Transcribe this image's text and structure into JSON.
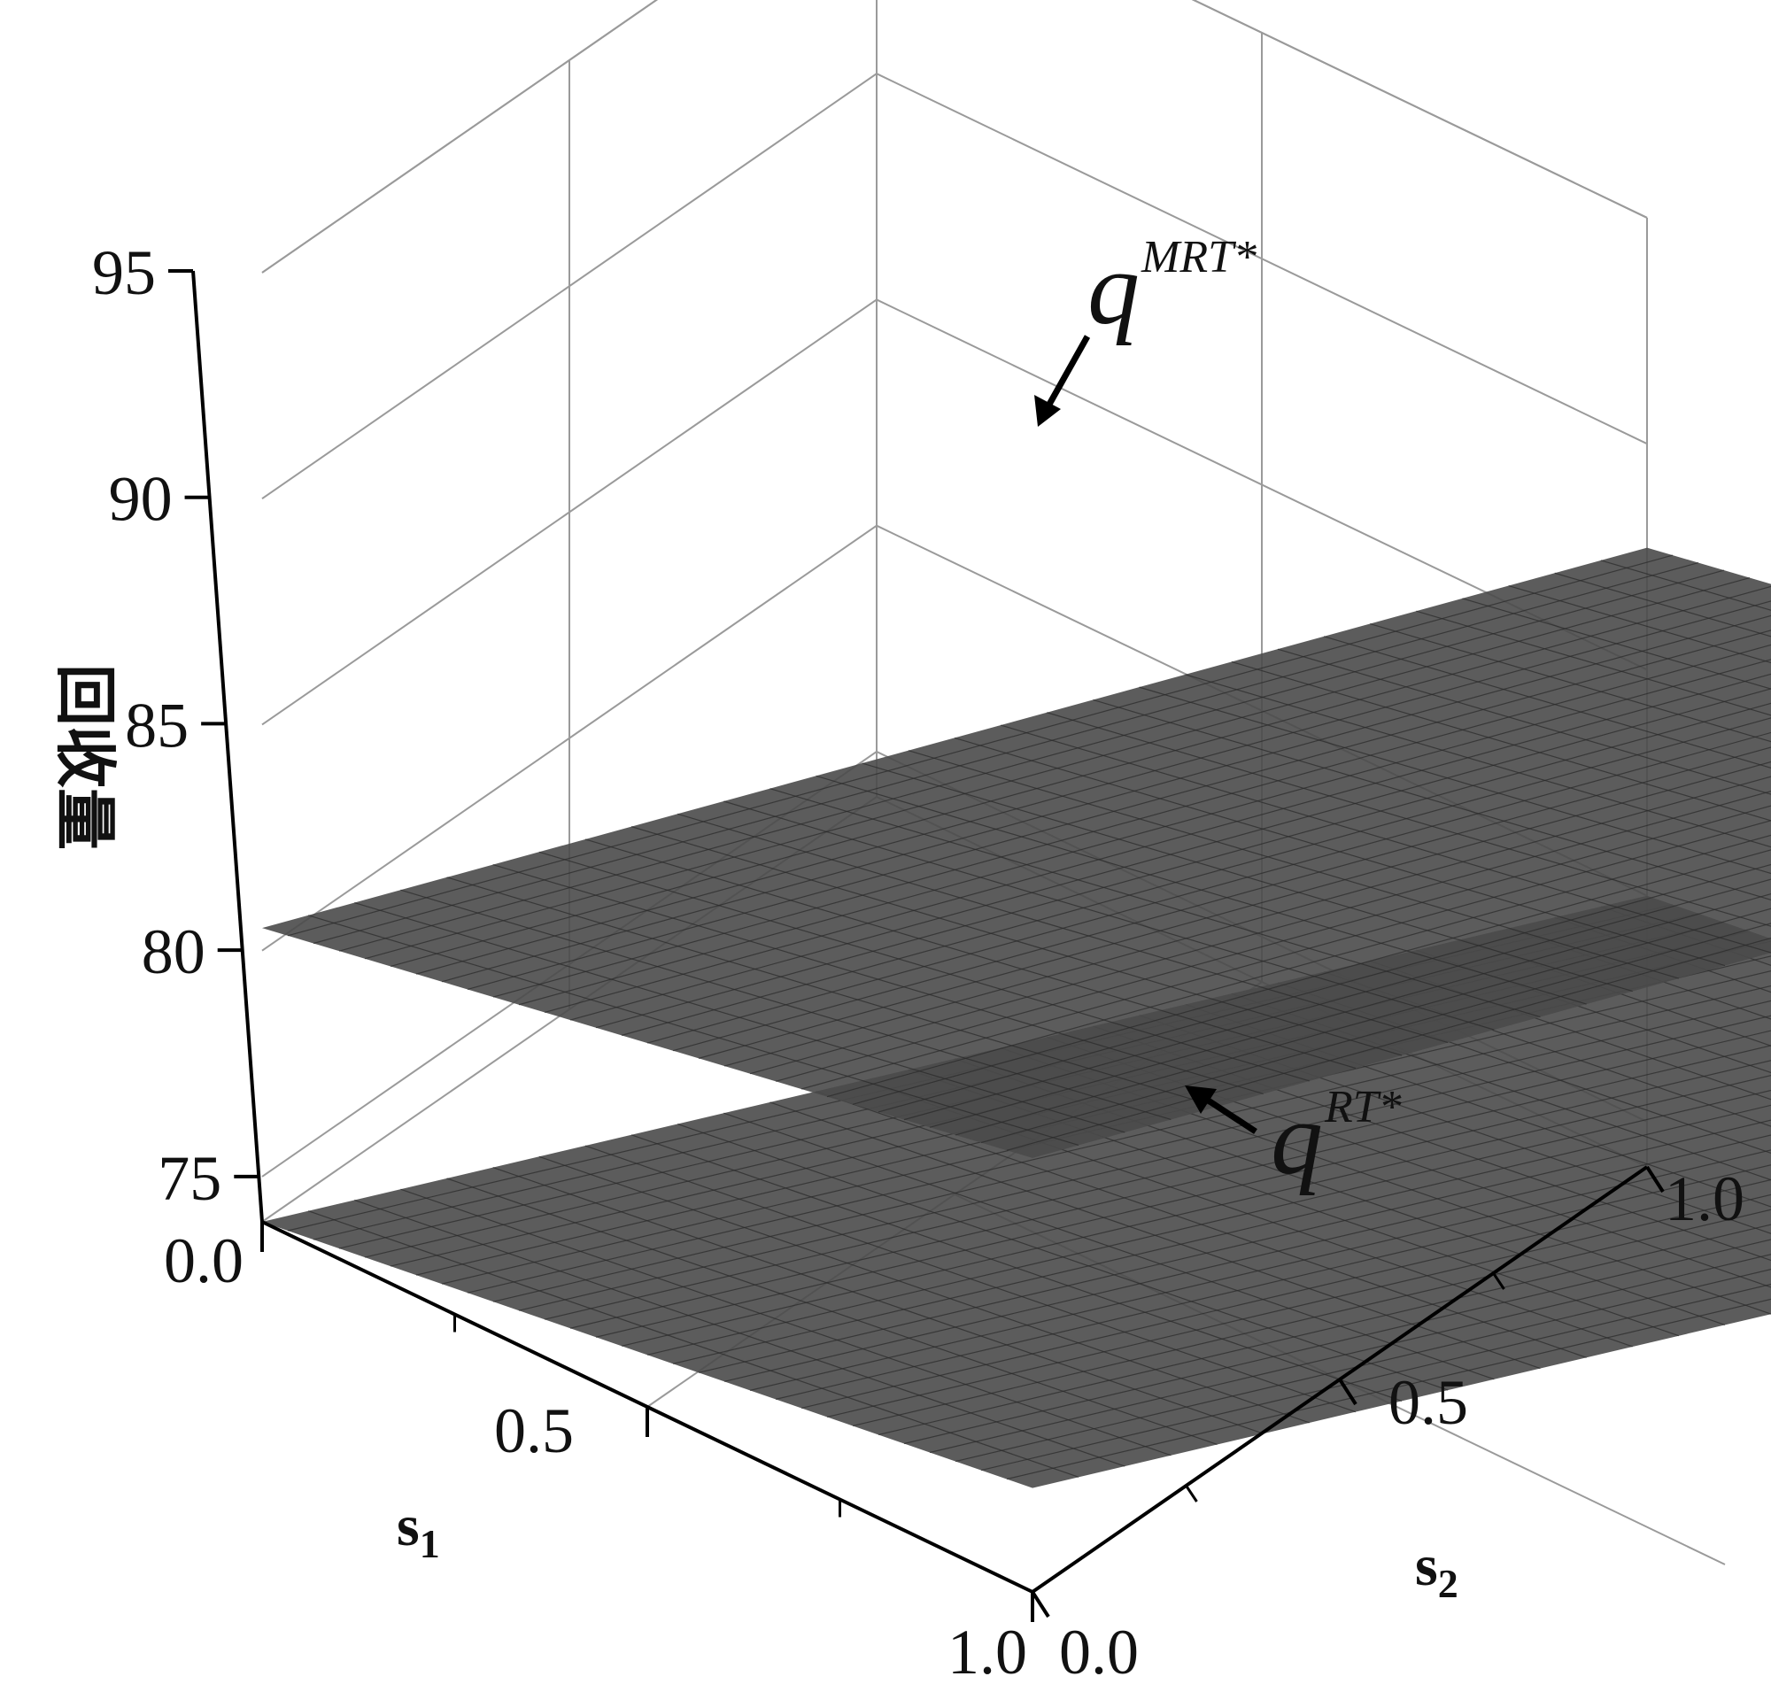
{
  "chart_data": {
    "type": "surface",
    "axes": {
      "s1": {
        "label": "s",
        "subscript": "1",
        "range": [
          0.0,
          1.0
        ],
        "ticks": [
          "0.0",
          "0.5",
          "1.0"
        ]
      },
      "s2": {
        "label": "s",
        "subscript": "2",
        "range": [
          0.0,
          1.0
        ],
        "ticks": [
          "0.0",
          "0.5",
          "1.0"
        ]
      },
      "z": {
        "label": "回收量",
        "range": [
          74,
          95
        ],
        "ticks": [
          "75",
          "80",
          "85",
          "90",
          "95"
        ]
      }
    },
    "series": [
      {
        "name": "q",
        "superscript": "MRT*",
        "corners": [
          {
            "s1": 0.0,
            "s2": 0.0,
            "z": 80.5
          },
          {
            "s1": 1.0,
            "s2": 0.0,
            "z": 83.6
          },
          {
            "s1": 0.0,
            "s2": 1.0,
            "z": 87.7
          },
          {
            "s1": 1.0,
            "s2": 1.0,
            "z": 90.9
          }
        ],
        "color": "#4a4a4a"
      },
      {
        "name": "q",
        "superscript": "RT*",
        "corners": [
          {
            "s1": 0.0,
            "s2": 0.0,
            "z": 74.0
          },
          {
            "s1": 1.0,
            "s2": 0.0,
            "z": 76.3
          },
          {
            "s1": 0.0,
            "s2": 1.0,
            "z": 80.0
          },
          {
            "s1": 1.0,
            "s2": 1.0,
            "z": 82.3
          }
        ],
        "color": "#4a4a4a"
      }
    ],
    "grid": true
  }
}
